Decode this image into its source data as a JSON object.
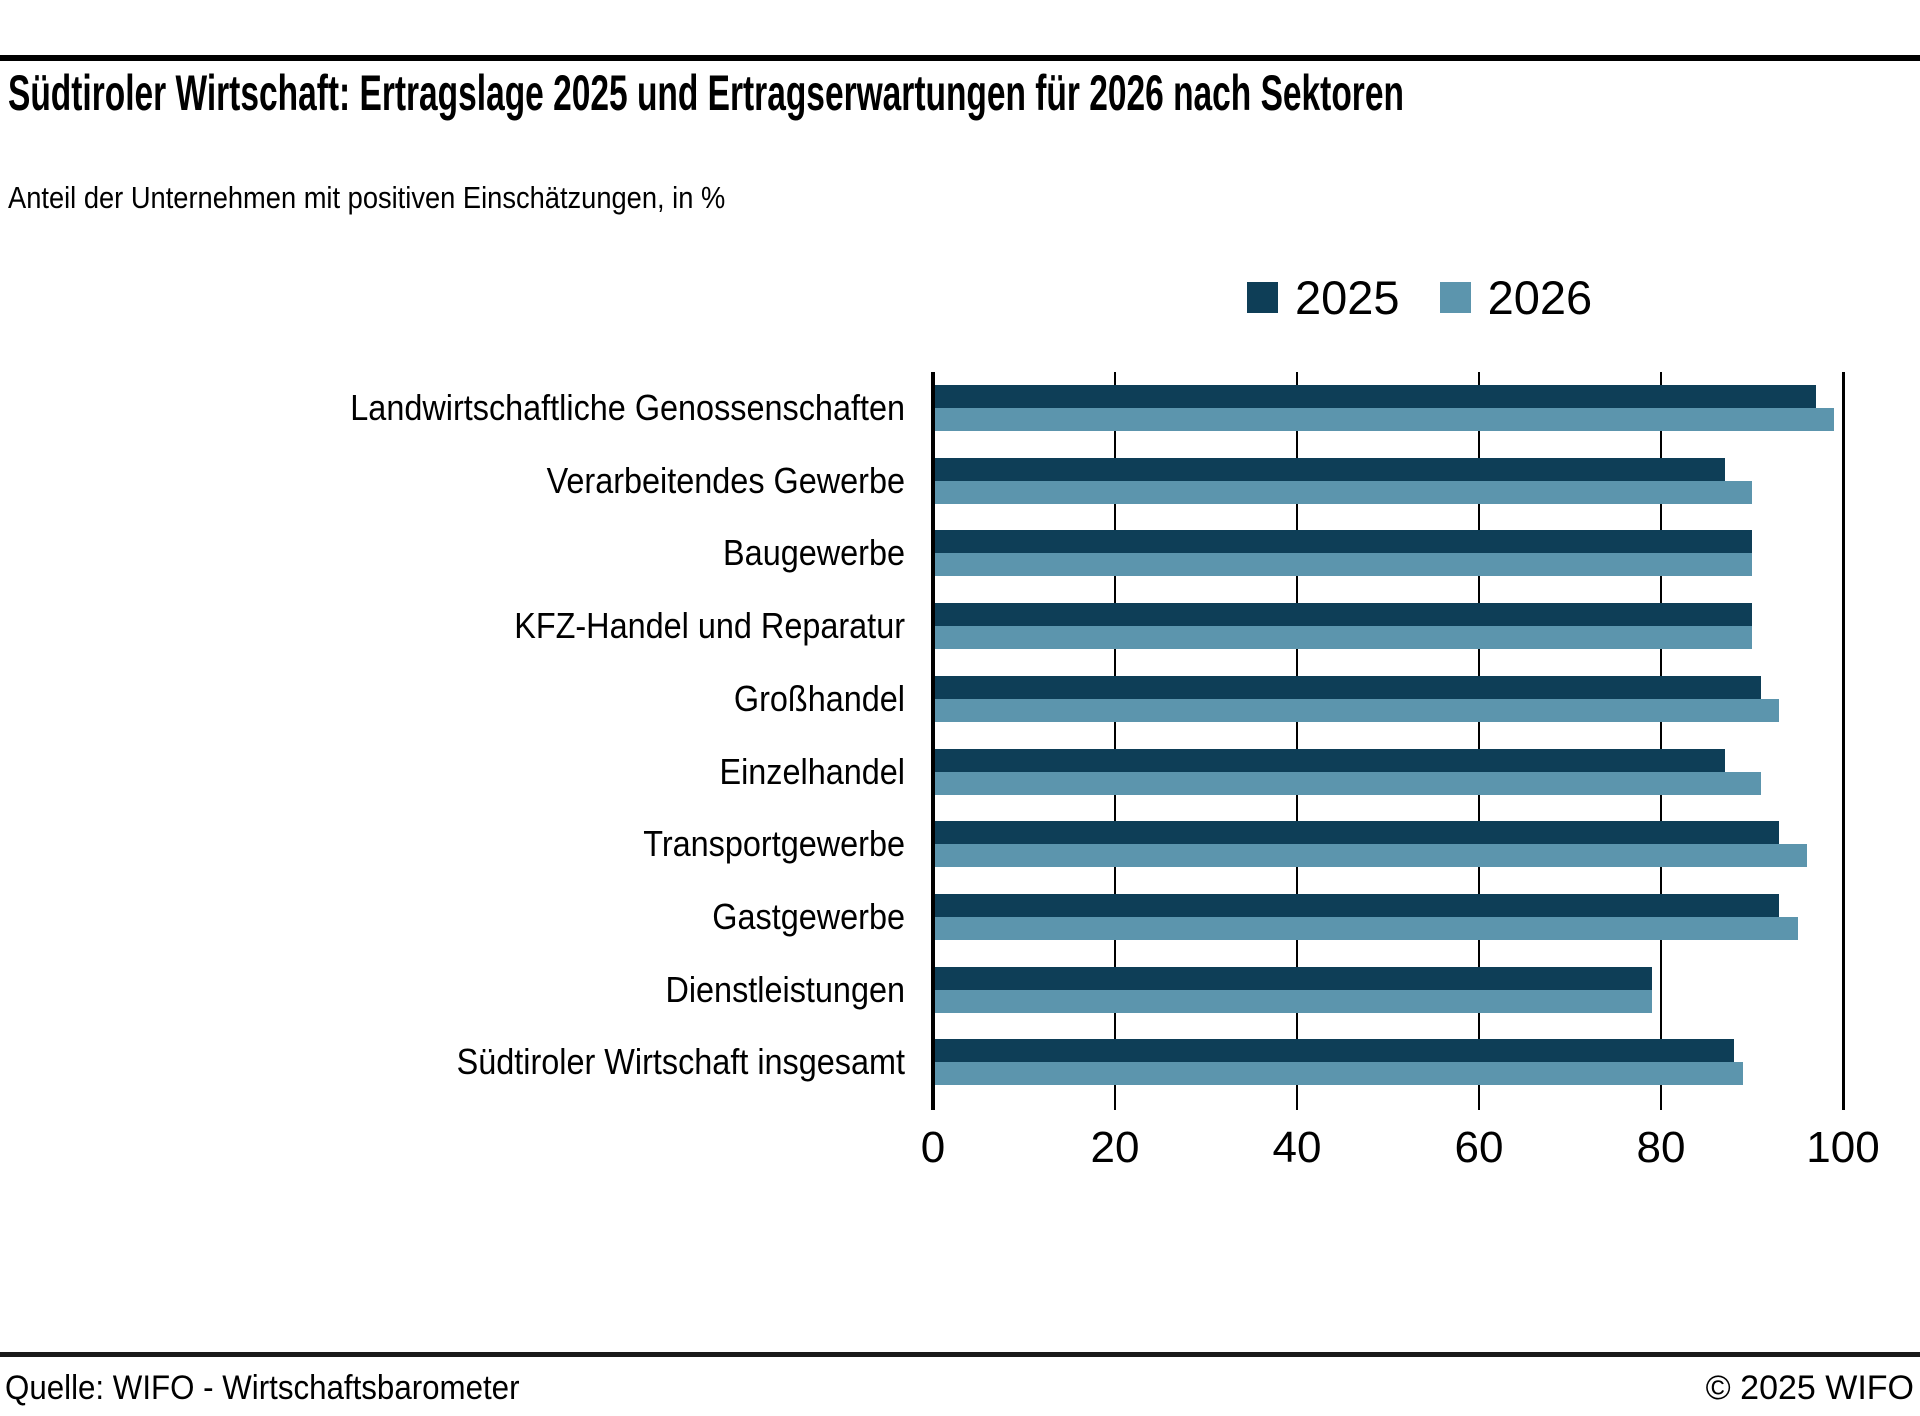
{
  "header": {
    "title": "Südtiroler Wirtschaft: Ertragslage 2025 und Ertragserwartungen für 2026 nach Sektoren",
    "subtitle": "Anteil der Unternehmen mit positiven Einschätzungen, in %"
  },
  "legend": [
    {
      "label": "2025",
      "color": "#0e3e57"
    },
    {
      "label": "2026",
      "color": "#5c95ad"
    }
  ],
  "chart_data": {
    "type": "bar",
    "orientation": "horizontal",
    "title": "Südtiroler Wirtschaft: Ertragslage 2025 und Ertragserwartungen für 2026 nach Sektoren",
    "subtitle": "Anteil der Unternehmen mit positiven Einschätzungen, in %",
    "categories": [
      "Landwirtschaftliche Genossenschaften",
      "Verarbeitendes Gewerbe",
      "Baugewerbe",
      "KFZ-Handel und Reparatur",
      "Großhandel",
      "Einzelhandel",
      "Transportgewerbe",
      "Gastgewerbe",
      "Dienstleistungen",
      "Südtiroler Wirtschaft insgesamt"
    ],
    "series": [
      {
        "name": "2025",
        "color": "#0e3e57",
        "values": [
          97,
          87,
          90,
          90,
          91,
          87,
          93,
          93,
          79,
          88
        ]
      },
      {
        "name": "2026",
        "color": "#5c95ad",
        "values": [
          99,
          90,
          90,
          90,
          93,
          91,
          96,
          95,
          79,
          89
        ]
      }
    ],
    "xlabel": "",
    "ylabel": "",
    "xlim": [
      0,
      100
    ],
    "xticks": [
      0,
      20,
      40,
      60,
      80,
      100
    ],
    "grid": "vertical",
    "legend_position": "top-right"
  },
  "footer": {
    "source": "Quelle: WIFO - Wirtschaftsbarometer",
    "copyright": "© 2025 WIFO"
  }
}
